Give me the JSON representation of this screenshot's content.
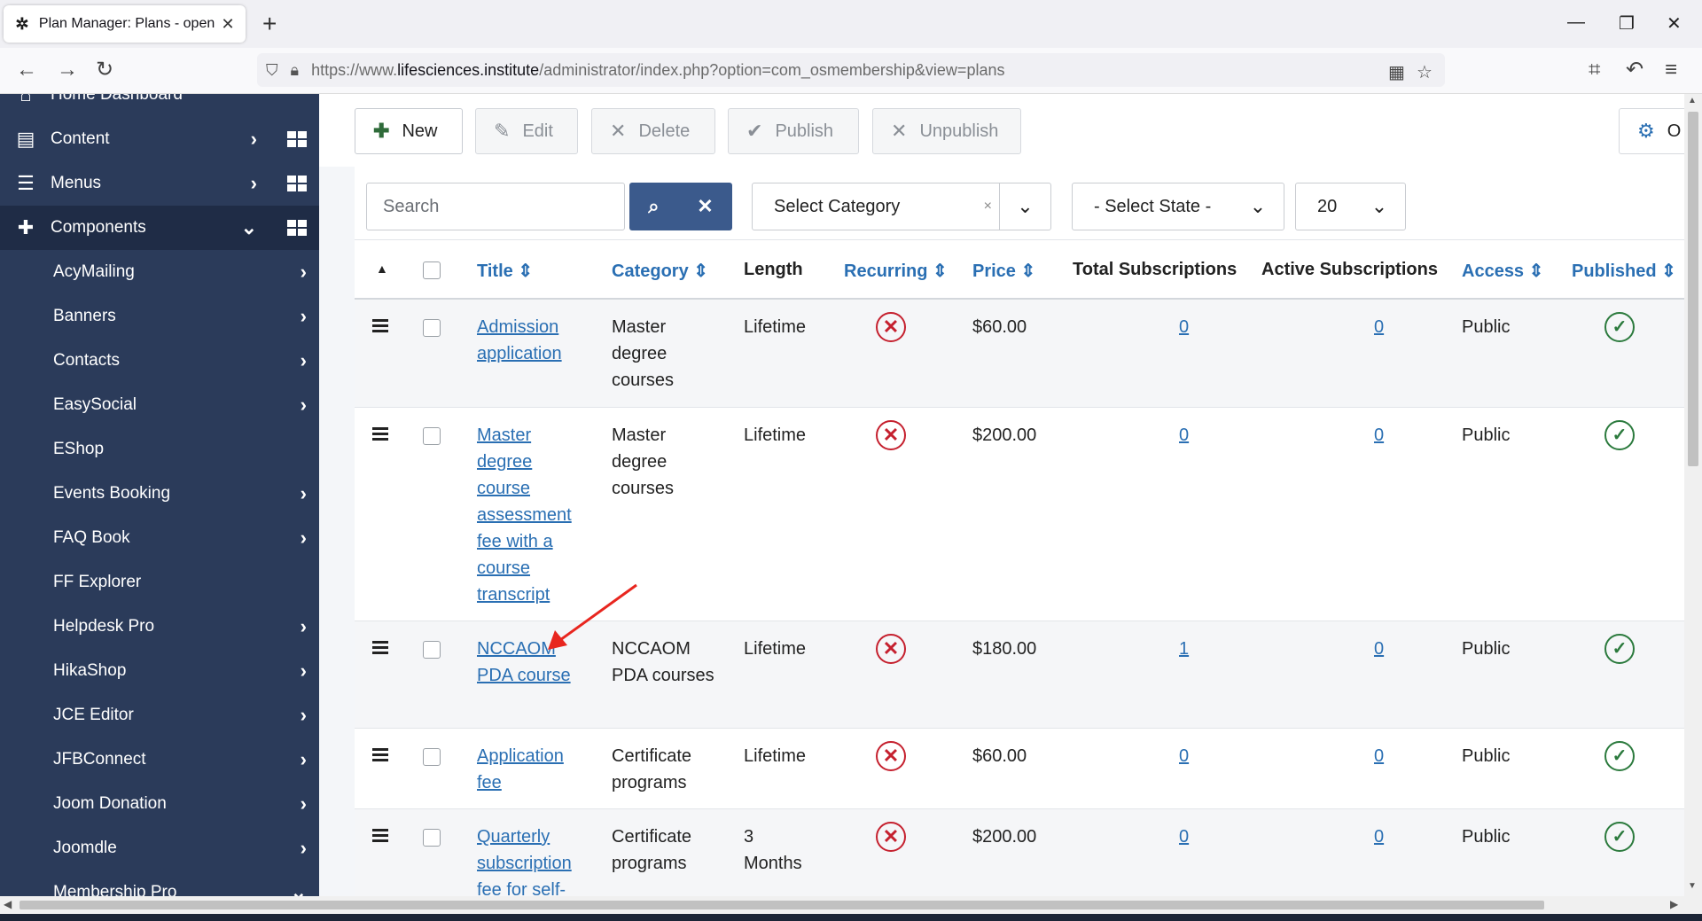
{
  "browser": {
    "tab_title": "Plan Manager: Plans - open i",
    "url_prefix": "https://www.",
    "url_domain": "lifesciences.institute",
    "url_path": "/administrator/index.php?option=com_osmembership&view=plans"
  },
  "sidebar": {
    "partial_item": "Home Dashboard",
    "top_items": [
      {
        "label": "Content",
        "icon": "file-icon"
      },
      {
        "label": "Menus",
        "icon": "list-icon"
      },
      {
        "label": "Components",
        "icon": "puzzle-icon"
      }
    ],
    "sub_items": [
      {
        "label": "AcyMailing"
      },
      {
        "label": "Banners"
      },
      {
        "label": "Contacts"
      },
      {
        "label": "EasySocial"
      },
      {
        "label": "EShop"
      },
      {
        "label": "Events Booking"
      },
      {
        "label": "FAQ Book"
      },
      {
        "label": "FF Explorer"
      },
      {
        "label": "Helpdesk Pro"
      },
      {
        "label": "HikaShop"
      },
      {
        "label": "JCE Editor"
      },
      {
        "label": "JFBConnect"
      },
      {
        "label": "Joom Donation"
      },
      {
        "label": "Joomdle"
      },
      {
        "label": "Membership Pro"
      }
    ]
  },
  "toolbar": {
    "new": "New",
    "edit": "Edit",
    "delete": "Delete",
    "publish": "Publish",
    "unpublish": "Unpublish",
    "options": "O"
  },
  "filters": {
    "search_placeholder": "Search",
    "category": "Select Category",
    "state": "- Select State -",
    "limit": "20"
  },
  "table": {
    "headers": {
      "title": "Title",
      "category": "Category",
      "length": "Length",
      "recurring": "Recurring",
      "price": "Price",
      "total_subs": "Total Subscriptions",
      "active_subs": "Active Subscriptions",
      "access": "Access",
      "published": "Published"
    },
    "rows": [
      {
        "title": "Admission application",
        "category": "Master degree courses",
        "length": "Lifetime",
        "price": "$60.00",
        "total": "0",
        "active": "0",
        "access": "Public"
      },
      {
        "title": "Master degree course assessment fee with a course transcript",
        "category": "Master degree courses",
        "length": "Lifetime",
        "price": "$200.00",
        "total": "0",
        "active": "0",
        "access": "Public"
      },
      {
        "title": "NCCAOM PDA course",
        "category": "NCCAOM PDA courses",
        "length": "Lifetime",
        "price": "$180.00",
        "total": "1",
        "active": "0",
        "access": "Public"
      },
      {
        "title": "Application fee",
        "category": "Certificate programs",
        "length": "Lifetime",
        "price": "$60.00",
        "total": "0",
        "active": "0",
        "access": "Public"
      },
      {
        "title": "Quarterly subscription fee for self-",
        "category": "Certificate programs",
        "length": "3 Months",
        "price": "$200.00",
        "total": "0",
        "active": "0",
        "access": "Public"
      }
    ]
  },
  "colors": {
    "sidebar": "#2b3b5a",
    "link": "#2a6fb3",
    "unpublished_x": "#c5202e",
    "published_check": "#2b7a3d",
    "annotation_arrow": "#e8261f"
  }
}
